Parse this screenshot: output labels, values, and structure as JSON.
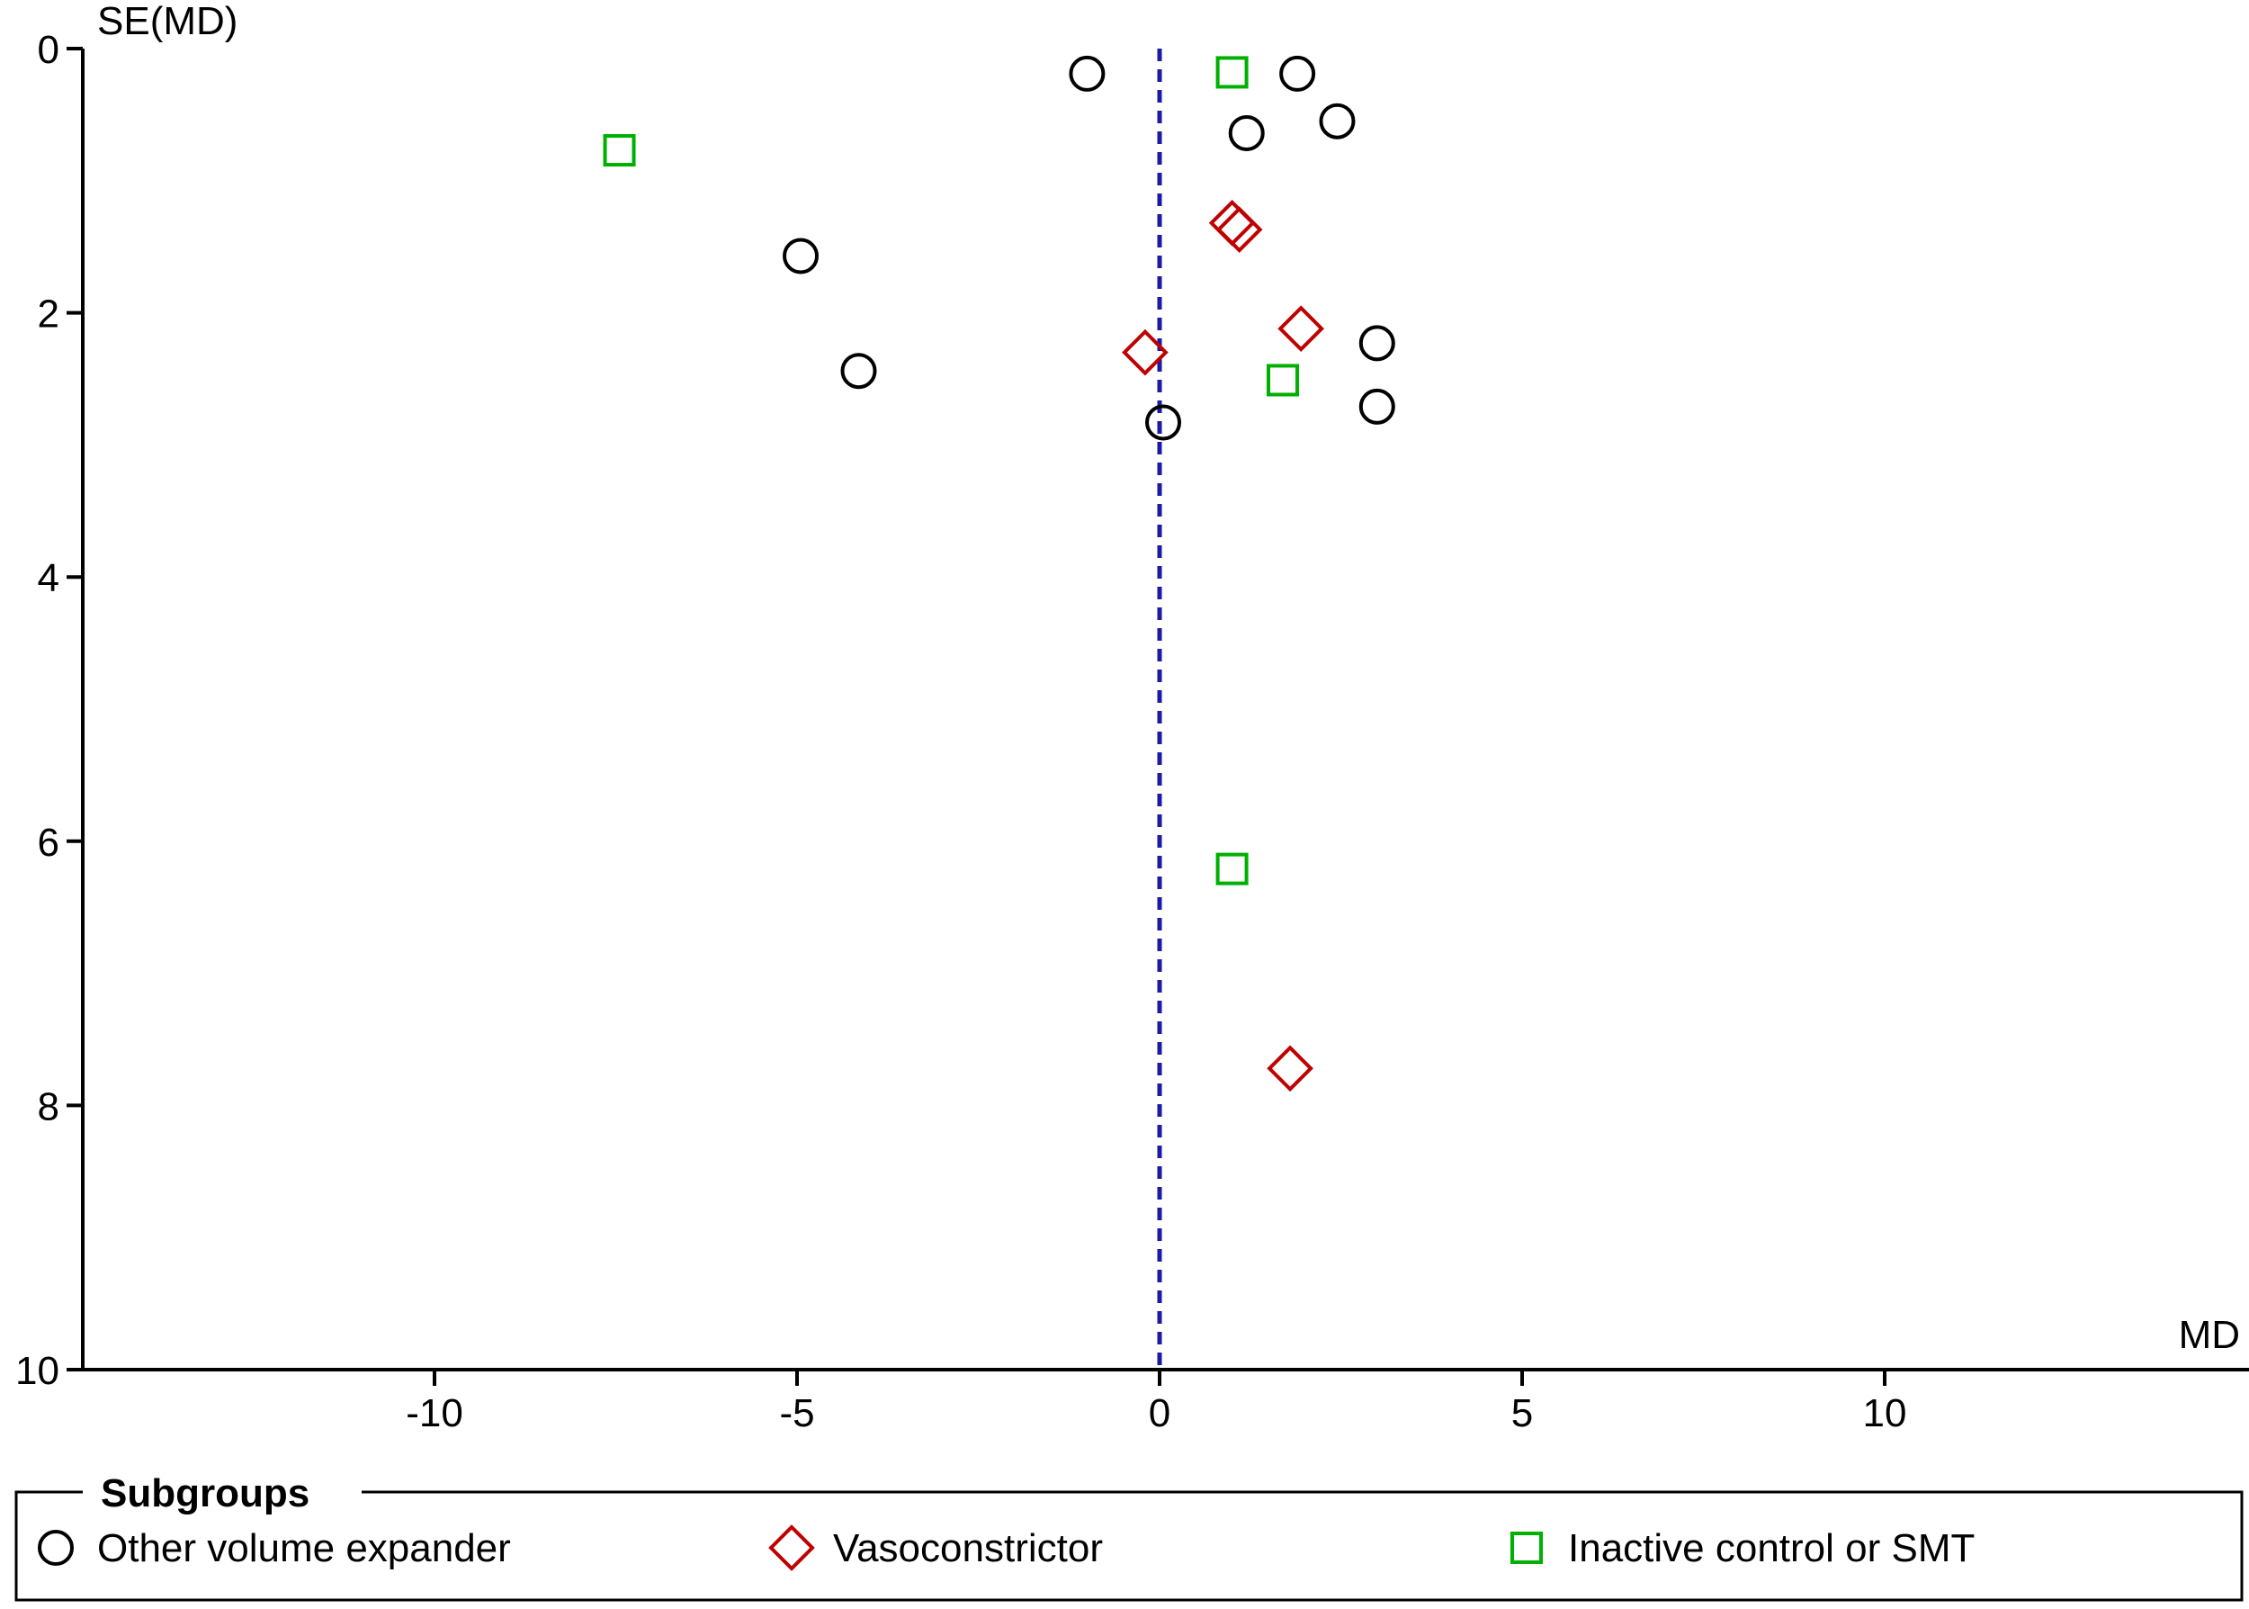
{
  "chart_data": {
    "type": "scatter",
    "title": "",
    "xlabel": "MD",
    "ylabel": "SE(MD)",
    "xlim": [
      -15,
      15
    ],
    "ylim": [
      0,
      10
    ],
    "y_inverted": true,
    "x_ticks": [
      -10,
      -5,
      0,
      5,
      10
    ],
    "y_ticks": [
      0,
      2,
      4,
      6,
      8,
      10
    ],
    "x_tick_labels": [
      "-10",
      "-5",
      "0",
      "5",
      "10"
    ],
    "y_tick_labels": [
      "0",
      "2",
      "4",
      "6",
      "8",
      "10"
    ],
    "reference_line": {
      "x": 0,
      "style": "dashed",
      "color": "#1a1aa6"
    },
    "grid": false,
    "legend": {
      "title": "Subgroups",
      "placement": "bottom"
    },
    "series": [
      {
        "name": "Other volume expander",
        "marker": "circle",
        "color": "#000000",
        "points": [
          {
            "x": -1.0,
            "y": 0.19
          },
          {
            "x": 1.9,
            "y": 0.19
          },
          {
            "x": 2.45,
            "y": 0.55
          },
          {
            "x": 1.2,
            "y": 0.64
          },
          {
            "x": -4.95,
            "y": 1.57
          },
          {
            "x": -4.15,
            "y": 2.44
          },
          {
            "x": 3.0,
            "y": 2.23
          },
          {
            "x": 3.0,
            "y": 2.71
          },
          {
            "x": 0.05,
            "y": 2.83
          }
        ]
      },
      {
        "name": "Vasoconstrictor",
        "marker": "diamond",
        "color": "#c00000",
        "points": [
          {
            "x": 1.0,
            "y": 1.32
          },
          {
            "x": 1.1,
            "y": 1.37
          },
          {
            "x": 1.95,
            "y": 2.12
          },
          {
            "x": -0.2,
            "y": 2.3
          },
          {
            "x": 1.8,
            "y": 7.72
          }
        ]
      },
      {
        "name": "Inactive control or SMT",
        "marker": "square",
        "color": "#00b000",
        "points": [
          {
            "x": 1.0,
            "y": 0.18
          },
          {
            "x": -7.45,
            "y": 0.77
          },
          {
            "x": 1.7,
            "y": 2.51
          },
          {
            "x": 1.0,
            "y": 6.21
          }
        ]
      }
    ]
  }
}
